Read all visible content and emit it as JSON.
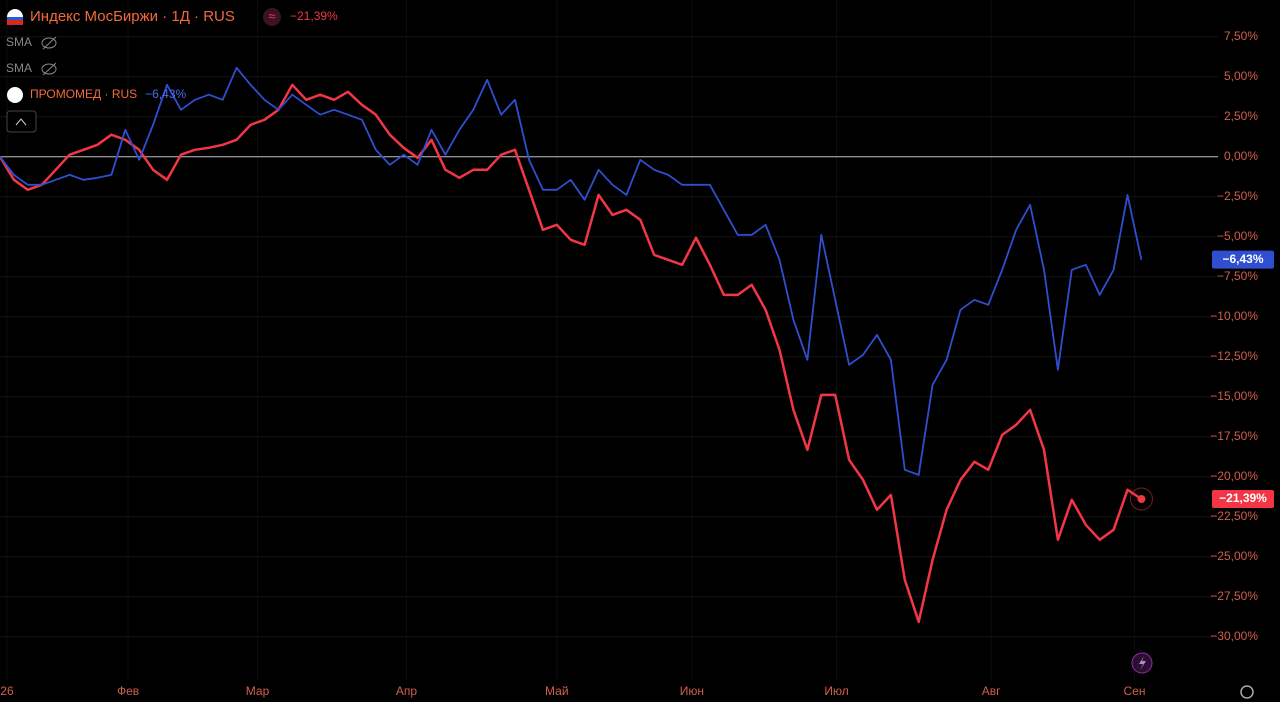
{
  "chart_data": {
    "type": "line",
    "series": [
      {
        "name": "Индекс МосБиржи · 1Д · RUS",
        "color": "#f23645",
        "last_label": "−21,39%",
        "values": [
          0,
          -1.44,
          -2.06,
          -1.75,
          -0.81,
          0.13,
          0.44,
          0.75,
          1.38,
          1.06,
          0.44,
          -0.81,
          -1.44,
          0.13,
          0.44,
          0.56,
          0.75,
          1.06,
          2.0,
          2.31,
          2.94,
          4.5,
          3.56,
          3.88,
          3.56,
          4.06,
          3.25,
          2.63,
          1.38,
          0.56,
          -0.06,
          1.06,
          -0.81,
          -1.31,
          -0.81,
          -0.81,
          0.13,
          0.44,
          -2.06,
          -4.56,
          -4.25,
          -5.19,
          -5.5,
          -2.38,
          -3.63,
          -3.31,
          -3.94,
          -6.13,
          -6.44,
          -6.75,
          -5.06,
          -6.75,
          -8.63,
          -8.63,
          -8.0,
          -9.56,
          -12.06,
          -15.81,
          -18.31,
          -14.88,
          -14.88,
          -18.94,
          -20.19,
          -22.06,
          -21.13,
          -26.44,
          -29.06,
          -25.19,
          -22.06,
          -20.19,
          -19.06,
          -19.56,
          -17.38,
          -16.75,
          -15.81,
          -18.31,
          -23.94,
          -21.44,
          -23.0,
          -23.94,
          -23.31,
          -20.81,
          -21.39
        ]
      },
      {
        "name": "ПРОМОМЕД · RUS",
        "color": "#2f4fd0",
        "last_label": "−6,43%",
        "values": [
          0,
          -1.13,
          -1.75,
          -1.75,
          -1.44,
          -1.13,
          -1.44,
          -1.31,
          -1.13,
          1.69,
          -0.19,
          2.0,
          4.5,
          2.94,
          3.56,
          3.88,
          3.56,
          5.56,
          4.5,
          3.56,
          2.94,
          3.88,
          3.25,
          2.63,
          2.94,
          2.63,
          2.31,
          0.44,
          -0.5,
          0.13,
          -0.5,
          1.69,
          0.13,
          1.69,
          2.94,
          4.81,
          2.63,
          3.56,
          -0.19,
          -2.06,
          -2.06,
          -1.44,
          -2.69,
          -0.81,
          -1.75,
          -2.38,
          -0.19,
          -0.81,
          -1.13,
          -1.75,
          -1.75,
          -1.75,
          -3.31,
          -4.88,
          -4.88,
          -4.25,
          -6.44,
          -10.19,
          -12.69,
          -4.88,
          -8.94,
          -13.0,
          -12.38,
          -11.13,
          -12.69,
          -19.56,
          -19.88,
          -14.25,
          -12.69,
          -9.56,
          -8.94,
          -9.25,
          -7.06,
          -4.56,
          -3.0,
          -7.06,
          -13.31,
          -7.06,
          -6.75,
          -8.63,
          -7.06,
          -2.38,
          -6.43
        ]
      }
    ],
    "indicators": [
      "SMA",
      "SMA"
    ],
    "xlim": [
      0,
      87.5
    ],
    "xticks": [
      {
        "value": 0.5,
        "label": "26"
      },
      {
        "value": 9.2,
        "label": "Фев"
      },
      {
        "value": 18.5,
        "label": "Мар"
      },
      {
        "value": 29.2,
        "label": "Апр"
      },
      {
        "value": 40.0,
        "label": "Май"
      },
      {
        "value": 49.7,
        "label": "Июн"
      },
      {
        "value": 60.1,
        "label": "Июл"
      },
      {
        "value": 71.2,
        "label": "Авг"
      },
      {
        "value": 81.5,
        "label": "Сен"
      }
    ],
    "ylim": [
      -32.7,
      9.8
    ],
    "yticks": [
      {
        "value": 7.5,
        "label": "7,50%"
      },
      {
        "value": 5,
        "label": "5,00%"
      },
      {
        "value": 2.5,
        "label": "2,50%"
      },
      {
        "value": 0,
        "label": "0,00%"
      },
      {
        "value": -2.5,
        "label": "−2,50%"
      },
      {
        "value": -5,
        "label": "−5,00%"
      },
      {
        "value": -7.5,
        "label": "−7,50%"
      },
      {
        "value": -10,
        "label": "−10,00%"
      },
      {
        "value": -12.5,
        "label": "−12,50%"
      },
      {
        "value": -15,
        "label": "−15,00%"
      },
      {
        "value": -17.5,
        "label": "−17,50%"
      },
      {
        "value": -20,
        "label": "−20,00%"
      },
      {
        "value": -22.5,
        "label": "−22,50%"
      },
      {
        "value": -25,
        "label": "−25,00%"
      },
      {
        "value": -27.5,
        "label": "−27,50%"
      },
      {
        "value": -30,
        "label": "−30,00%"
      }
    ],
    "grid": true
  }
}
